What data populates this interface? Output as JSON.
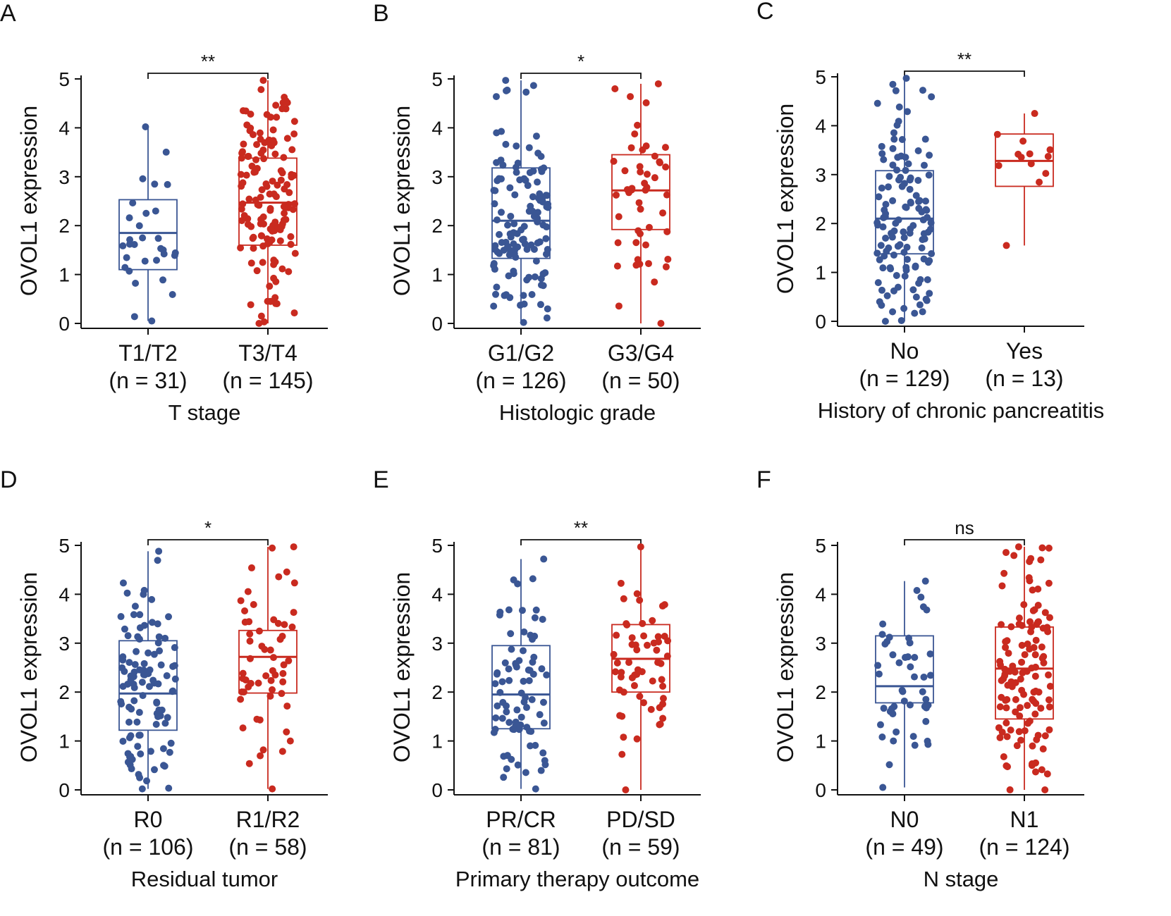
{
  "colors": {
    "group1": "#3a5694",
    "group2": "#c92a1f",
    "axis": "#111111"
  },
  "chart_data": [
    {
      "type": "box",
      "panel": "A",
      "ylabel": "OVOL1 expression",
      "xlabel": "T stage",
      "ylim": [
        0,
        5
      ],
      "yticks": [
        "0",
        "1",
        "2",
        "3",
        "4",
        "5"
      ],
      "significance": "**",
      "groups": [
        {
          "name": "T1/T2",
          "n_label": "(n = 31)",
          "n": 31,
          "q1": 1.1,
          "median": 1.85,
          "q3": 2.53,
          "whisker_low": 0.05,
          "whisker_high": 4.02
        },
        {
          "name": "T3/T4",
          "n_label": "(n = 145)",
          "n": 145,
          "q1": 1.6,
          "median": 2.47,
          "q3": 3.38,
          "whisker_low": 0.0,
          "whisker_high": 4.97
        }
      ]
    },
    {
      "type": "box",
      "panel": "B",
      "ylabel": "OVOL1 expression",
      "xlabel": "Histologic grade",
      "ylim": [
        0,
        5
      ],
      "yticks": [
        "0",
        "1",
        "2",
        "3",
        "4",
        "5"
      ],
      "significance": "*",
      "groups": [
        {
          "name": "G1/G2",
          "n_label": "(n = 126)",
          "n": 126,
          "q1": 1.33,
          "median": 2.1,
          "q3": 3.18,
          "whisker_low": 0.02,
          "whisker_high": 4.97
        },
        {
          "name": "G3/G4",
          "n_label": "(n = 50)",
          "n": 50,
          "q1": 1.92,
          "median": 2.72,
          "q3": 3.45,
          "whisker_low": 0.0,
          "whisker_high": 4.9
        }
      ]
    },
    {
      "type": "box",
      "panel": "C",
      "ylabel": "OVOL1 expression",
      "xlabel": "History of chronic pancreatitis",
      "ylim": [
        0,
        5
      ],
      "yticks": [
        "0",
        "1",
        "2",
        "3",
        "4",
        "5"
      ],
      "significance": "**",
      "groups": [
        {
          "name": "No",
          "n_label": "(n = 129)",
          "n": 129,
          "q1": 1.38,
          "median": 2.1,
          "q3": 3.08,
          "whisker_low": 0.0,
          "whisker_high": 4.97
        },
        {
          "name": "Yes",
          "n_label": "(n = 13)",
          "n": 13,
          "q1": 2.76,
          "median": 3.28,
          "q3": 3.83,
          "whisker_low": 1.55,
          "whisker_high": 4.25
        }
      ]
    },
    {
      "type": "box",
      "panel": "D",
      "ylabel": "OVOL1 expression",
      "xlabel": "Residual tumor",
      "ylim": [
        0,
        5
      ],
      "yticks": [
        "0",
        "1",
        "2",
        "3",
        "4",
        "5"
      ],
      "significance": "*",
      "groups": [
        {
          "name": "R0",
          "n_label": "(n = 106)",
          "n": 106,
          "q1": 1.22,
          "median": 1.97,
          "q3": 3.05,
          "whisker_low": 0.02,
          "whisker_high": 4.88
        },
        {
          "name": "R1/R2",
          "n_label": "(n = 58)",
          "n": 58,
          "q1": 1.98,
          "median": 2.72,
          "q3": 3.26,
          "whisker_low": 0.02,
          "whisker_high": 4.97
        }
      ]
    },
    {
      "type": "box",
      "panel": "E",
      "ylabel": "OVOL1 expression",
      "xlabel": "Primary therapy outcome",
      "ylim": [
        0,
        5
      ],
      "yticks": [
        "0",
        "1",
        "2",
        "3",
        "4",
        "5"
      ],
      "significance": "**",
      "groups": [
        {
          "name": "PR/CR",
          "n_label": "(n = 81)",
          "n": 81,
          "q1": 1.25,
          "median": 1.95,
          "q3": 2.95,
          "whisker_low": 0.02,
          "whisker_high": 4.72
        },
        {
          "name": "PD/SD",
          "n_label": "(n = 59)",
          "n": 59,
          "q1": 2.0,
          "median": 2.68,
          "q3": 3.38,
          "whisker_low": 0.0,
          "whisker_high": 4.97
        }
      ]
    },
    {
      "type": "box",
      "panel": "F",
      "ylabel": "OVOL1 expression",
      "xlabel": "N stage",
      "ylim": [
        0,
        5
      ],
      "yticks": [
        "0",
        "1",
        "2",
        "3",
        "4",
        "5"
      ],
      "significance": "ns",
      "groups": [
        {
          "name": "N0",
          "n_label": "(n = 49)",
          "n": 49,
          "q1": 1.78,
          "median": 2.12,
          "q3": 3.15,
          "whisker_low": 0.05,
          "whisker_high": 4.27
        },
        {
          "name": "N1",
          "n_label": "(n = 124)",
          "n": 124,
          "q1": 1.45,
          "median": 2.48,
          "q3": 3.33,
          "whisker_low": 0.0,
          "whisker_high": 4.97
        }
      ]
    }
  ]
}
